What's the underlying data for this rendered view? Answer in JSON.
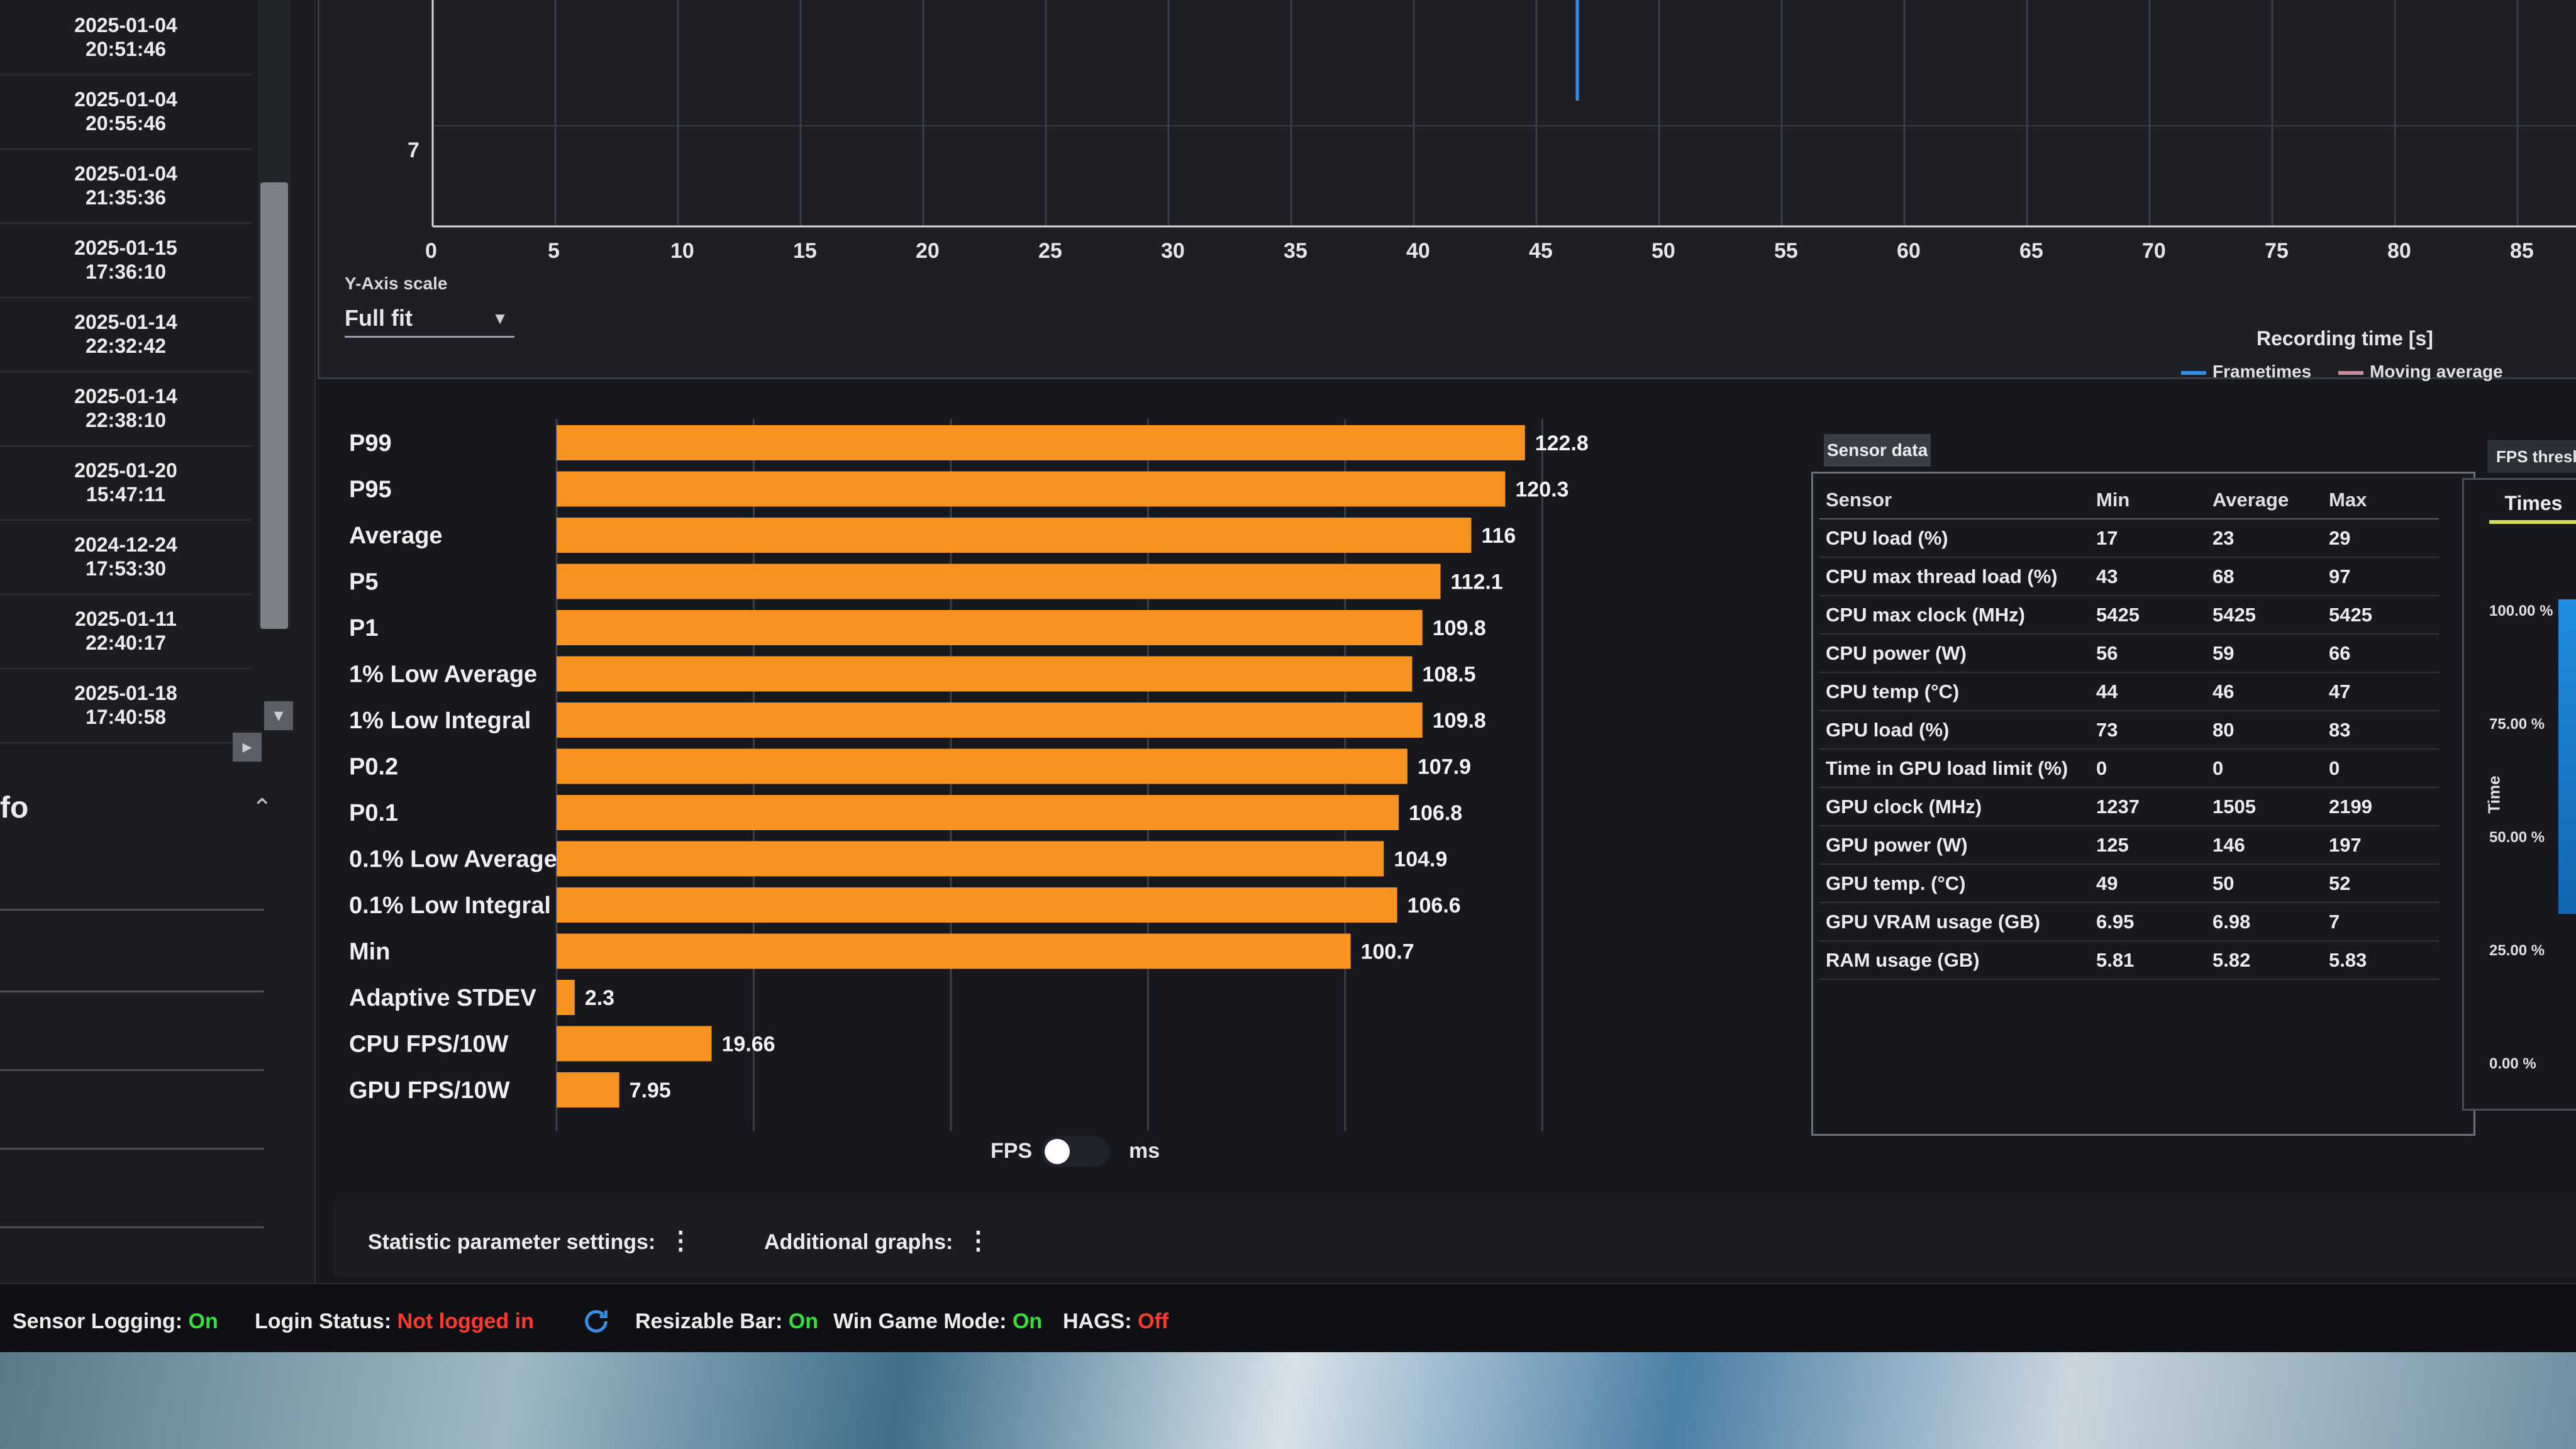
{
  "runs": [
    {
      "date": "2025-01-04",
      "time": "20:51:46"
    },
    {
      "date": "2025-01-04",
      "time": "20:55:46"
    },
    {
      "date": "2025-01-04",
      "time": "21:35:36"
    },
    {
      "date": "2025-01-15",
      "time": "17:36:10"
    },
    {
      "date": "2025-01-14",
      "time": "22:32:42"
    },
    {
      "date": "2025-01-14",
      "time": "22:38:10"
    },
    {
      "date": "2025-01-20",
      "time": "15:47:11"
    },
    {
      "date": "2024-12-24",
      "time": "17:53:30"
    },
    {
      "date": "2025-01-11",
      "time": "22:40:17"
    },
    {
      "date": "2025-01-18",
      "time": "17:40:58"
    }
  ],
  "info_panel": {
    "title": "fo"
  },
  "graph": {
    "y_tick": "7",
    "x_ticks": [
      "0",
      "5",
      "10",
      "15",
      "20",
      "25",
      "30",
      "35",
      "40",
      "45",
      "50",
      "55",
      "60",
      "65",
      "70",
      "75",
      "80",
      "85"
    ],
    "x_label": "Recording time [s]",
    "y_scale_label": "Y-Axis scale",
    "y_scale_value": "Full fit",
    "legend": {
      "frametimes": "Frametimes",
      "moving_average": "Moving average"
    },
    "colors": {
      "frametimes": "#2e8fe6",
      "moving_average": "#c98a9c"
    }
  },
  "chart_data": {
    "type": "bar",
    "orientation": "horizontal",
    "categories": [
      "P99",
      "P95",
      "Average",
      "P5",
      "P1",
      "1% Low Average",
      "1% Low Integral",
      "P0.2",
      "P0.1",
      "0.1% Low Average",
      "0.1% Low Integral",
      "Min",
      "Adaptive STDEV",
      "CPU FPS/10W",
      "GPU FPS/10W"
    ],
    "values": [
      122.8,
      120.3,
      116,
      112.1,
      109.8,
      108.5,
      109.8,
      107.9,
      106.8,
      104.9,
      106.6,
      100.7,
      2.3,
      19.66,
      7.95
    ],
    "value_labels": [
      "122.8",
      "120.3",
      "116",
      "112.1",
      "109.8",
      "108.5",
      "109.8",
      "107.9",
      "106.8",
      "104.9",
      "106.6",
      "100.7",
      "2.3",
      "19.66",
      "7.95"
    ],
    "x_ticks": [
      "0",
      "25",
      "50",
      "75",
      "100",
      "125"
    ],
    "xlim": [
      0,
      130
    ],
    "bar_color": "#f7931e",
    "grid": true
  },
  "unit_toggle": {
    "left": "FPS",
    "right": "ms",
    "selected": "FPS"
  },
  "sensor": {
    "tab": "Sensor data",
    "headers": [
      "Sensor",
      "Min",
      "Average",
      "Max"
    ],
    "rows": [
      [
        "CPU load (%)",
        "17",
        "23",
        "29"
      ],
      [
        "CPU max thread load (%)",
        "43",
        "68",
        "97"
      ],
      [
        "CPU max clock (MHz)",
        "5425",
        "5425",
        "5425"
      ],
      [
        "CPU power (W)",
        "56",
        "59",
        "66"
      ],
      [
        "CPU temp (°C)",
        "44",
        "46",
        "47"
      ],
      [
        "GPU load (%)",
        "73",
        "80",
        "83"
      ],
      [
        "Time in GPU load limit (%)",
        "0",
        "0",
        "0"
      ],
      [
        "GPU clock (MHz)",
        "1237",
        "1505",
        "2199"
      ],
      [
        "GPU power (W)",
        "125",
        "146",
        "197"
      ],
      [
        "GPU temp. (°C)",
        "49",
        "50",
        "52"
      ],
      [
        "GPU VRAM usage (GB)",
        "6.95",
        "6.98",
        "7"
      ],
      [
        "RAM usage (GB)",
        "5.81",
        "5.82",
        "5.83"
      ]
    ]
  },
  "threshold": {
    "tab": "FPS thresh",
    "subtab": "Times",
    "axis_title": "Time",
    "y_ticks": [
      "100.00 %",
      "75.00 %",
      "50.00 %",
      "25.00 %",
      "0.00 %"
    ]
  },
  "settings": {
    "statistic": "Statistic parameter settings:",
    "additional": "Additional graphs:",
    "dots": "⋮"
  },
  "status": {
    "sensor_logging_label": "Sensor Logging:",
    "sensor_logging_value": "On",
    "login_label": "Login Status:",
    "login_value": "Not logged in",
    "resizable_bar_label": "Resizable Bar:",
    "resizable_bar_value": "On",
    "win_game_mode_label": "Win Game Mode:",
    "win_game_mode_value": "On",
    "hags_label": "HAGS:",
    "hags_value": "Off",
    "colors": {
      "on": "#36e03a",
      "off": "#ff3b30"
    }
  }
}
